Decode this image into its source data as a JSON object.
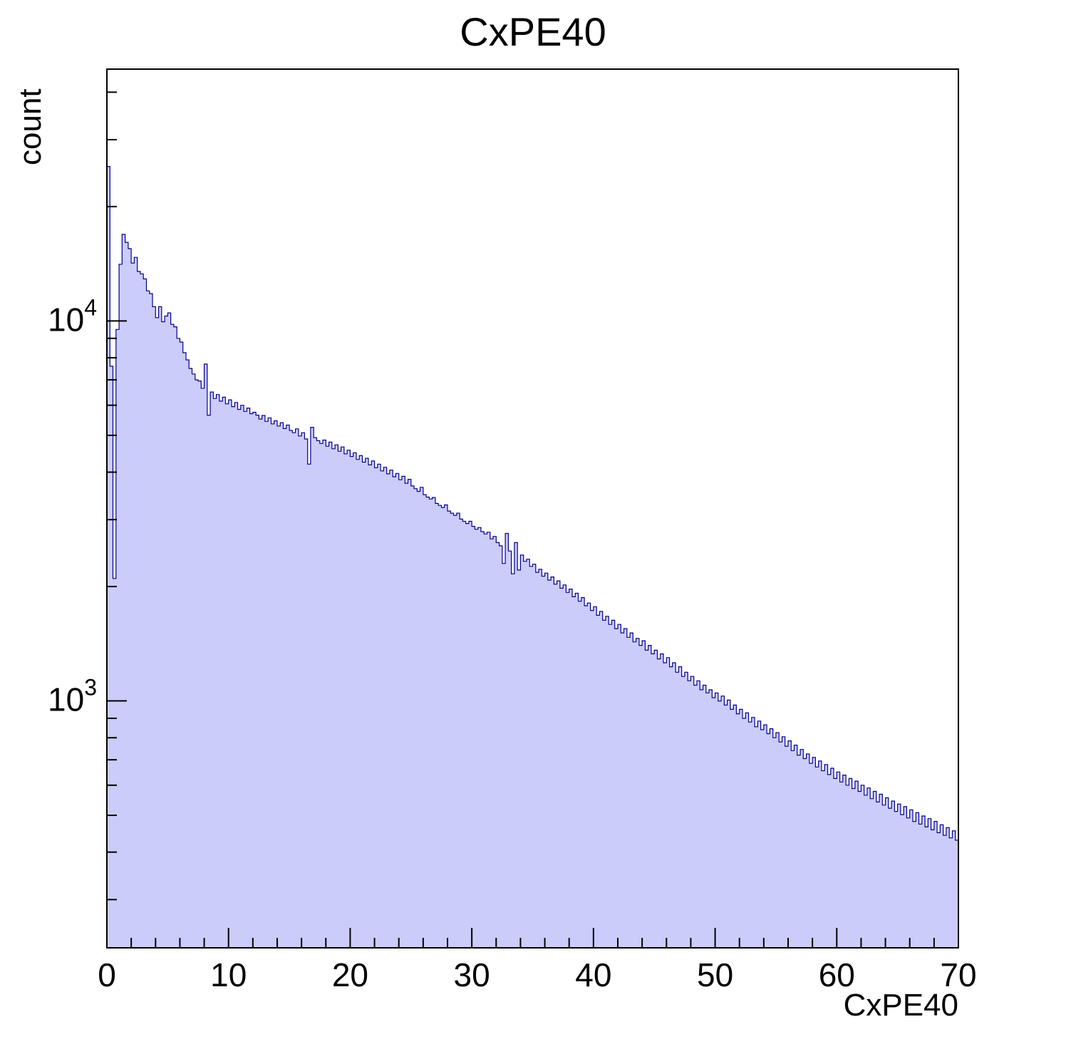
{
  "chart_data": {
    "type": "bar",
    "title": "CxPE40",
    "xlabel": "CxPE40",
    "ylabel": "count",
    "xlim": [
      0,
      70
    ],
    "ylim": [
      224,
      46000
    ],
    "ylog": true,
    "grid": false,
    "legend": "none",
    "x_start": 0,
    "bin_width": 0.25,
    "x_major_ticks": [
      0,
      10,
      20,
      30,
      40,
      50,
      60,
      70
    ],
    "x_tick_labels": [
      "0",
      "10",
      "20",
      "30",
      "40",
      "50",
      "60",
      "70"
    ],
    "x_minor_tick_step": 2,
    "y_major_ticks": [
      {
        "v": 1000,
        "base": "10",
        "exp": "3"
      },
      {
        "v": 10000,
        "base": "10",
        "exp": "4"
      }
    ],
    "fill_color": "#ccccfa",
    "line_color": "#00008c",
    "frame_color": "#000000",
    "values": [
      25500,
      7600,
      2100,
      9500,
      14100,
      16900,
      16100,
      15500,
      14200,
      14700,
      13500,
      13300,
      12900,
      12000,
      11800,
      10900,
      10200,
      10900,
      9950,
      10300,
      10500,
      9800,
      9650,
      9000,
      8800,
      8250,
      7900,
      7500,
      7250,
      7000,
      6950,
      6650,
      7700,
      5650,
      6500,
      6250,
      6400,
      6150,
      6300,
      6050,
      6200,
      5950,
      6100,
      5850,
      6000,
      5780,
      5900,
      5700,
      5750,
      5650,
      5520,
      5640,
      5440,
      5560,
      5360,
      5460,
      5290,
      5400,
      5210,
      5320,
      5150,
      5080,
      5200,
      4980,
      5080,
      4890,
      4200,
      5250,
      4930,
      4840,
      4760,
      4860,
      4680,
      4800,
      4610,
      4720,
      4540,
      4660,
      4470,
      4570,
      4400,
      4500,
      4320,
      4420,
      4250,
      4350,
      4180,
      4280,
      4110,
      4200,
      4030,
      4120,
      3960,
      4050,
      3890,
      3970,
      3820,
      3900,
      3740,
      3830,
      3680,
      3620,
      3560,
      3650,
      3490,
      3440,
      3400,
      3430,
      3310,
      3270,
      3230,
      3280,
      3160,
      3120,
      3080,
      3120,
      3010,
      2970,
      2930,
      2970,
      2880,
      2830,
      2860,
      2790,
      2750,
      2780,
      2670,
      2710,
      2610,
      2560,
      2300,
      2760,
      2480,
      2160,
      2610,
      2210,
      2420,
      2330,
      2360,
      2260,
      2290,
      2180,
      2220,
      2130,
      2170,
      2080,
      2120,
      2030,
      2070,
      1980,
      2020,
      1930,
      1970,
      1880,
      1920,
      1830,
      1870,
      1780,
      1810,
      1730,
      1770,
      1680,
      1720,
      1630,
      1670,
      1590,
      1630,
      1550,
      1590,
      1510,
      1550,
      1470,
      1510,
      1430,
      1460,
      1400,
      1440,
      1360,
      1400,
      1330,
      1360,
      1290,
      1330,
      1260,
      1300,
      1230,
      1260,
      1190,
      1230,
      1160,
      1190,
      1130,
      1160,
      1100,
      1130,
      1070,
      1100,
      1050,
      1070,
      1020,
      1050,
      1000,
      1030,
      975,
      1005,
      950,
      975,
      925,
      950,
      900,
      930,
      880,
      905,
      855,
      885,
      840,
      865,
      820,
      845,
      800,
      825,
      780,
      805,
      760,
      785,
      740,
      765,
      720,
      745,
      705,
      725,
      685,
      710,
      670,
      695,
      655,
      680,
      640,
      665,
      625,
      650,
      612,
      638,
      600,
      625,
      588,
      615,
      578,
      600,
      565,
      590,
      553,
      578,
      542,
      568,
      532,
      556,
      522,
      545,
      512,
      535,
      502,
      527,
      492,
      517,
      482,
      508,
      474,
      498,
      466,
      490,
      458,
      482,
      450,
      472,
      443,
      464,
      436,
      455,
      430
    ]
  }
}
